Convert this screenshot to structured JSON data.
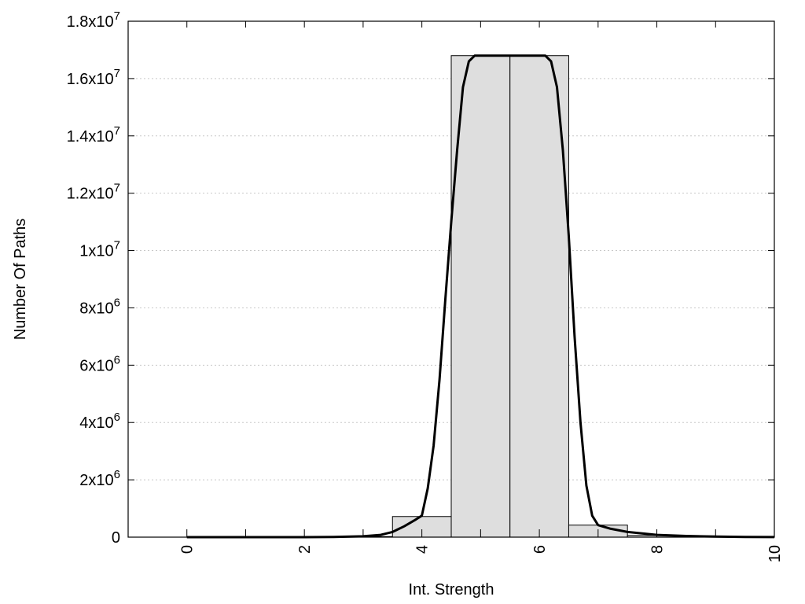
{
  "chart_data": {
    "type": "bar",
    "xlabel": "Int. Strength",
    "ylabel": "Number Of Paths",
    "xlim": [
      -1,
      10
    ],
    "ylim": [
      0,
      18000000
    ],
    "x_ticks": [
      {
        "value": 0,
        "label": "0"
      },
      {
        "value": 2,
        "label": "2"
      },
      {
        "value": 4,
        "label": "4"
      },
      {
        "value": 6,
        "label": "6"
      },
      {
        "value": 8,
        "label": "8"
      },
      {
        "value": 10,
        "label": "10"
      }
    ],
    "x_minor_ticks": [
      1,
      3,
      5,
      7,
      9
    ],
    "y_ticks": [
      {
        "value": 0,
        "base": "0",
        "exp": ""
      },
      {
        "value": 2000000,
        "base": "2x10",
        "exp": "6"
      },
      {
        "value": 4000000,
        "base": "4x10",
        "exp": "6"
      },
      {
        "value": 6000000,
        "base": "6x10",
        "exp": "6"
      },
      {
        "value": 8000000,
        "base": "8x10",
        "exp": "6"
      },
      {
        "value": 10000000,
        "base": "1x10",
        "exp": "7"
      },
      {
        "value": 12000000,
        "base": "1.2x10",
        "exp": "7"
      },
      {
        "value": 14000000,
        "base": "1.4x10",
        "exp": "7"
      },
      {
        "value": 16000000,
        "base": "1.6x10",
        "exp": "7"
      },
      {
        "value": 18000000,
        "base": "1.8x10",
        "exp": "7"
      }
    ],
    "grid": "horizontal-dotted",
    "bar_width": 1,
    "bars": [
      {
        "x": 0,
        "value": 0
      },
      {
        "x": 1,
        "value": 0
      },
      {
        "x": 2,
        "value": 0
      },
      {
        "x": 3,
        "value": 20000
      },
      {
        "x": 4,
        "value": 720000
      },
      {
        "x": 5,
        "value": 16800000
      },
      {
        "x": 6,
        "value": 16800000
      },
      {
        "x": 7,
        "value": 420000
      },
      {
        "x": 8,
        "value": 60000
      },
      {
        "x": 9,
        "value": 10000
      },
      {
        "x": 10,
        "value": 0
      }
    ],
    "bar_color": "#dedede",
    "curve_color": "#000000",
    "curve": [
      [
        0,
        0
      ],
      [
        1,
        0
      ],
      [
        2,
        0
      ],
      [
        2.5,
        5000
      ],
      [
        3,
        30000
      ],
      [
        3.3,
        80000
      ],
      [
        3.5,
        180000
      ],
      [
        3.7,
        380000
      ],
      [
        3.9,
        620000
      ],
      [
        4.0,
        750000
      ],
      [
        4.1,
        1700000
      ],
      [
        4.2,
        3200000
      ],
      [
        4.3,
        5500000
      ],
      [
        4.4,
        8300000
      ],
      [
        4.5,
        11000000
      ],
      [
        4.6,
        13500000
      ],
      [
        4.7,
        15700000
      ],
      [
        4.8,
        16600000
      ],
      [
        4.9,
        16800000
      ],
      [
        5.5,
        16800000
      ],
      [
        6.1,
        16800000
      ],
      [
        6.2,
        16600000
      ],
      [
        6.3,
        15700000
      ],
      [
        6.4,
        13500000
      ],
      [
        6.5,
        10500000
      ],
      [
        6.6,
        7000000
      ],
      [
        6.7,
        4000000
      ],
      [
        6.8,
        1800000
      ],
      [
        6.9,
        750000
      ],
      [
        7.0,
        420000
      ],
      [
        7.2,
        300000
      ],
      [
        7.5,
        180000
      ],
      [
        8.0,
        80000
      ],
      [
        8.5,
        40000
      ],
      [
        9.0,
        20000
      ],
      [
        9.5,
        8000
      ],
      [
        10.0,
        3000
      ]
    ]
  }
}
